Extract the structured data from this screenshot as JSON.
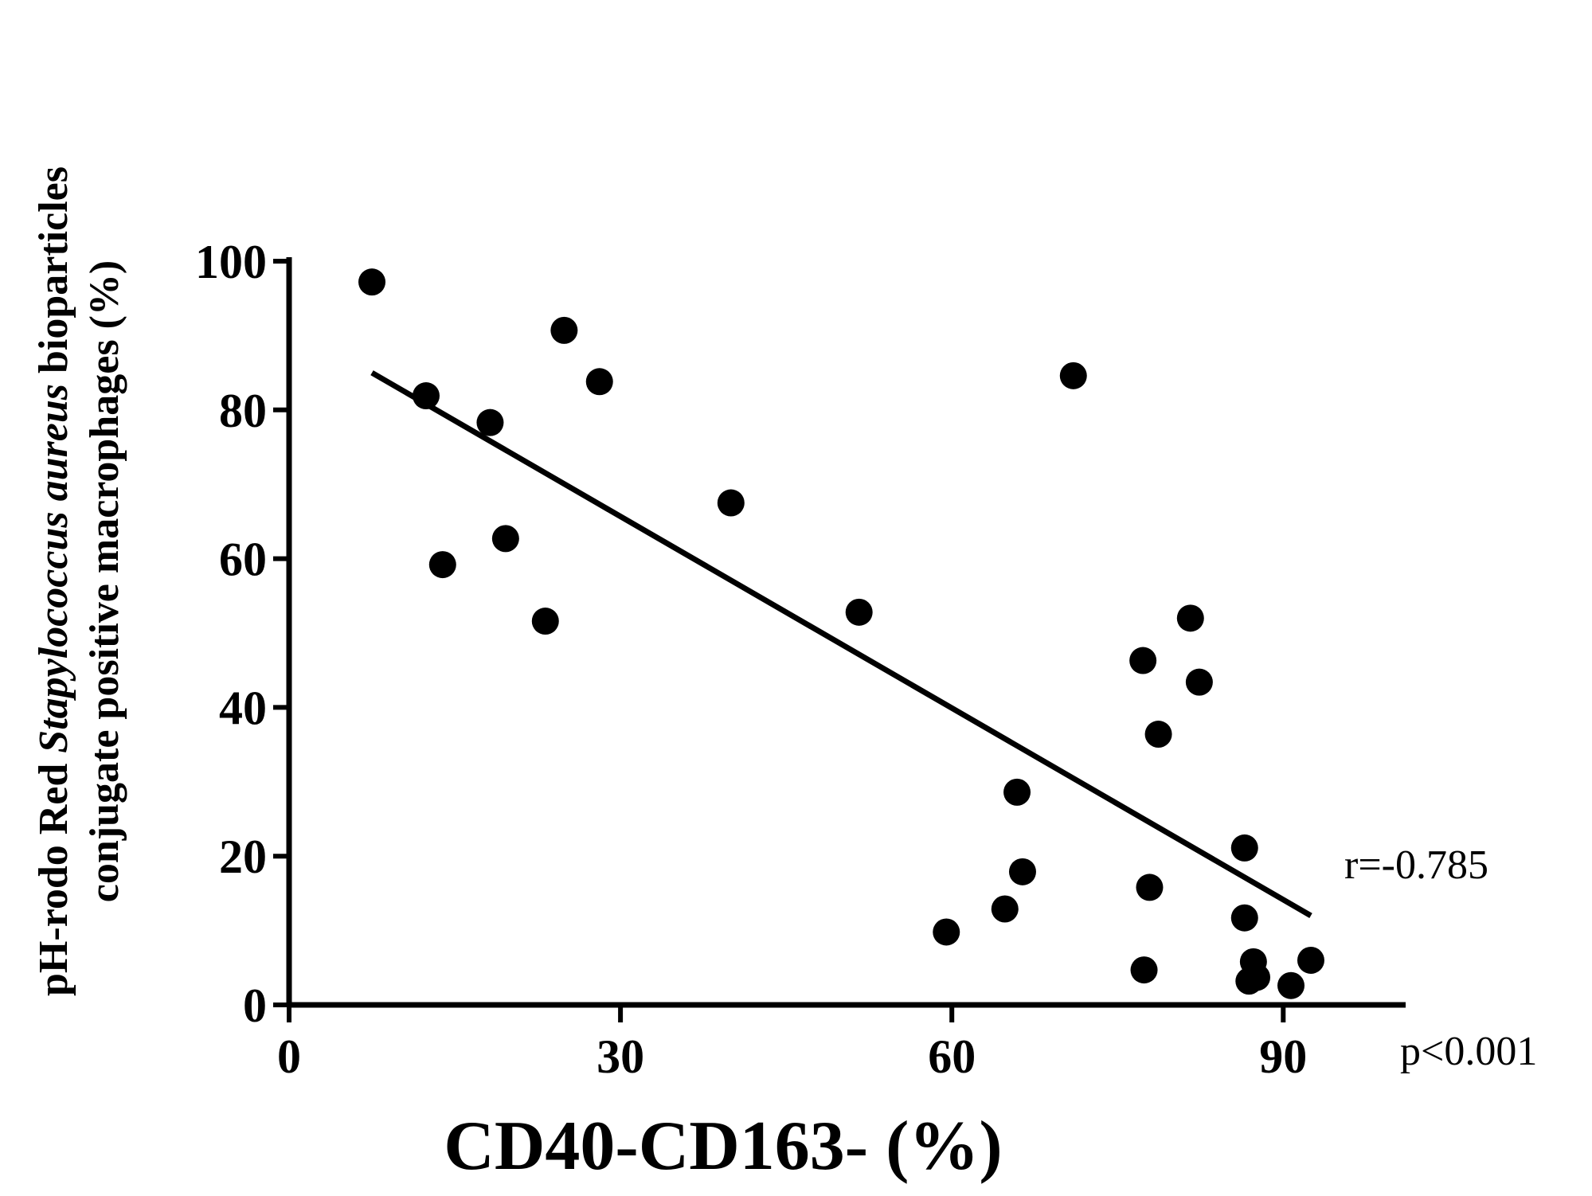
{
  "chart_data": {
    "type": "scatter",
    "title": "",
    "xlabel": "CD40-CD163- (%)",
    "ylabel": {
      "line1_pre": "pH-rodo Red ",
      "line1_italic": "Stapylococcus aureus",
      "line1_post": " bioparticles",
      "line2": "conjugate positive macrophages (%)"
    },
    "xlim": [
      0,
      100
    ],
    "ylim": [
      0,
      100
    ],
    "x_ticks": [
      0,
      30,
      60,
      90
    ],
    "y_ticks": [
      0,
      20,
      40,
      60,
      80,
      100
    ],
    "x_tick_labels": [
      "0",
      "30",
      "60",
      "90"
    ],
    "y_tick_labels": [
      "0",
      "20",
      "40",
      "60",
      "80",
      "100"
    ],
    "grid": false,
    "series": [
      {
        "name": "samples",
        "marker": "filled-circle",
        "color": "#000000",
        "points": [
          {
            "x": 7.5,
            "y": 97.2
          },
          {
            "x": 12.4,
            "y": 81.9
          },
          {
            "x": 13.9,
            "y": 59.2
          },
          {
            "x": 18.2,
            "y": 78.3
          },
          {
            "x": 19.6,
            "y": 62.7
          },
          {
            "x": 23.2,
            "y": 51.6
          },
          {
            "x": 24.9,
            "y": 90.7
          },
          {
            "x": 28.1,
            "y": 83.8
          },
          {
            "x": 40.0,
            "y": 67.5
          },
          {
            "x": 51.6,
            "y": 52.8
          },
          {
            "x": 59.5,
            "y": 9.8
          },
          {
            "x": 64.8,
            "y": 12.9
          },
          {
            "x": 65.9,
            "y": 28.6
          },
          {
            "x": 66.4,
            "y": 17.9
          },
          {
            "x": 71.0,
            "y": 84.6
          },
          {
            "x": 77.3,
            "y": 46.3
          },
          {
            "x": 77.4,
            "y": 4.7
          },
          {
            "x": 77.9,
            "y": 15.8
          },
          {
            "x": 78.7,
            "y": 36.4
          },
          {
            "x": 81.6,
            "y": 52.0
          },
          {
            "x": 82.4,
            "y": 43.4
          },
          {
            "x": 86.5,
            "y": 21.1
          },
          {
            "x": 86.5,
            "y": 11.7
          },
          {
            "x": 87.3,
            "y": 5.8
          },
          {
            "x": 86.9,
            "y": 3.2
          },
          {
            "x": 87.6,
            "y": 3.7
          },
          {
            "x": 90.7,
            "y": 2.6
          },
          {
            "x": 92.5,
            "y": 6.0
          }
        ]
      }
    ],
    "fit_line": {
      "x1": 7.5,
      "y1": 85.0,
      "x2": 92.5,
      "y2": 12.0
    },
    "annotations": {
      "r": "r=-0.785",
      "p": "p<0.001"
    }
  }
}
